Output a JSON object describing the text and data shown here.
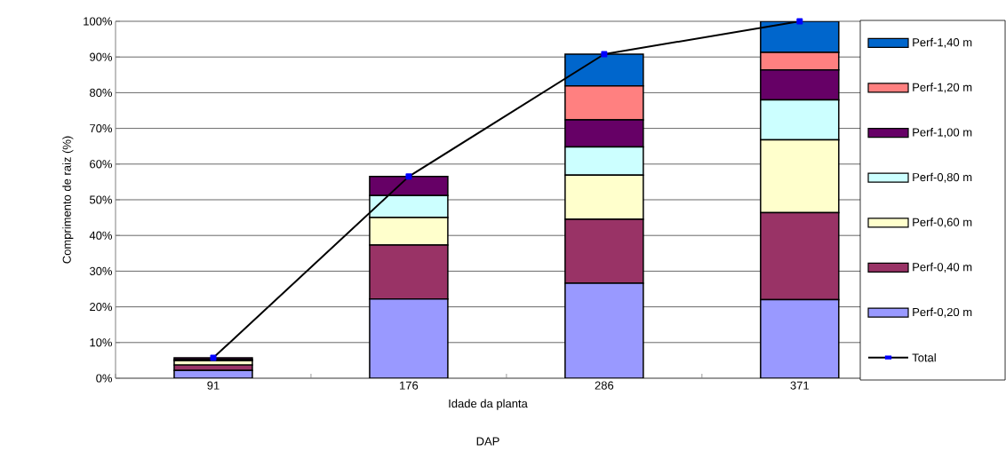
{
  "chart_data": {
    "type": "bar",
    "stacked": true,
    "xlabel": "Idade da planta",
    "ylabel": "Comprimento de raiz (%)",
    "annotations": [
      "DAP"
    ],
    "categories": [
      "91",
      "176",
      "286",
      "371"
    ],
    "ylim": [
      0,
      100
    ],
    "yticks": [
      {
        "value": 0,
        "label": "0%"
      },
      {
        "value": 10,
        "label": "10%"
      },
      {
        "value": 20,
        "label": "20%"
      },
      {
        "value": 30,
        "label": "30%"
      },
      {
        "value": 40,
        "label": "40%"
      },
      {
        "value": 50,
        "label": "50%"
      },
      {
        "value": 60,
        "label": "60%"
      },
      {
        "value": 70,
        "label": "70%"
      },
      {
        "value": 80,
        "label": "80%"
      },
      {
        "value": 90,
        "label": "90%"
      },
      {
        "value": 100,
        "label": "100%"
      }
    ],
    "grid": "y",
    "legend": "right",
    "marker": "square",
    "series": [
      {
        "name": "Perf-0,20 m",
        "color": "#9999ff",
        "values": [
          2.2,
          22.2,
          26.6,
          22.0
        ]
      },
      {
        "name": "Perf-0,40 m",
        "color": "#993366",
        "values": [
          1.5,
          15.1,
          17.9,
          24.4
        ]
      },
      {
        "name": "Perf-0,60 m",
        "color": "#ffffcc",
        "values": [
          1.2,
          7.7,
          12.4,
          20.4
        ]
      },
      {
        "name": "Perf-0,80 m",
        "color": "#ccffff",
        "values": [
          0.3,
          6.2,
          7.9,
          11.2
        ]
      },
      {
        "name": "Perf-1,00 m",
        "color": "#660066",
        "values": [
          0.5,
          5.3,
          7.6,
          8.4
        ]
      },
      {
        "name": "Perf-1,20 m",
        "color": "#ff8080",
        "values": [
          0,
          0,
          9.5,
          4.9
        ]
      },
      {
        "name": "Perf-1,40 m",
        "color": "#0066cc",
        "values": [
          0,
          0,
          8.9,
          8.7
        ]
      },
      {
        "name": "Total",
        "type": "line",
        "color": "#000000",
        "values": [
          5.7,
          56.5,
          90.8,
          100
        ]
      }
    ]
  }
}
